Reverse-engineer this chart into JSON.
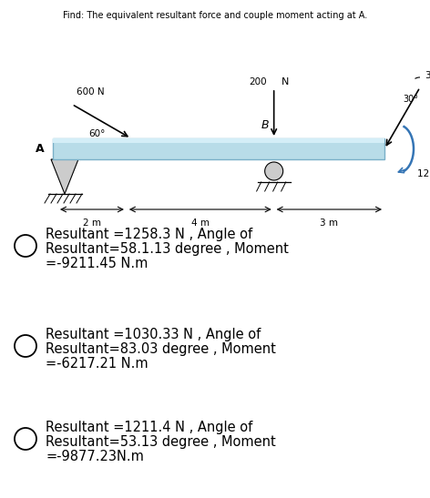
{
  "title": "Find: The equivalent resultant force and couple moment acting at A.",
  "title_fontsize": 7.0,
  "beam_color": "#b8dce8",
  "beam_highlight_color": "#d4eef7",
  "beam_edge_color": "#7ab0c8",
  "options": [
    {
      "text_line1": "Resultant =1258.3 N , Angle of",
      "text_line2": "Resultant=58.1.13 degree , Moment",
      "text_line3": "=-9211.45 N.m"
    },
    {
      "text_line1": "Resultant =1030.33 N , Angle of",
      "text_line2": "Resultant=83.03 degree , Moment",
      "text_line3": "=-6217.21 N.m"
    },
    {
      "text_line1": "Resultant =1211.4 N , Angle of",
      "text_line2": "Resultant=53.13 degree , Moment",
      "text_line3": "=-9877.23N.m"
    }
  ],
  "option_fontsize": 10.5,
  "background_color": "#ffffff"
}
